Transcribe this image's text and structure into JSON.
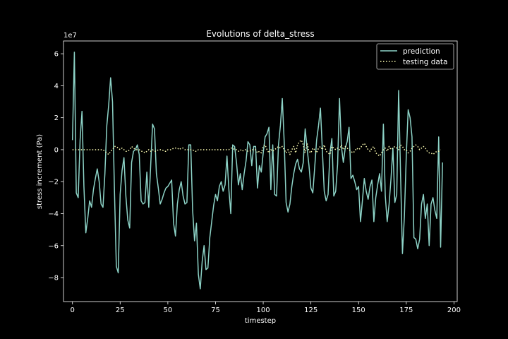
{
  "chart_data": {
    "type": "line",
    "title": "Evolutions of delta_stress",
    "xlabel": "timestep",
    "ylabel": "stress increment (Pa)",
    "y_scale_label": "1e7",
    "xlim": [
      -4.7,
      201.7
    ],
    "ylim": [
      -9.5,
      6.8
    ],
    "x_ticks": [
      0,
      25,
      50,
      75,
      100,
      125,
      150,
      175,
      200
    ],
    "x_tick_labels": [
      "0",
      "25",
      "50",
      "75",
      "100",
      "125",
      "150",
      "175",
      "200"
    ],
    "y_ticks": [
      -8,
      -6,
      -4,
      -2,
      0,
      2,
      4,
      6
    ],
    "y_tick_labels": [
      "−8",
      "−6",
      "−4",
      "−2",
      "0",
      "2",
      "4",
      "6"
    ],
    "legend_position": "upper right",
    "grid": false,
    "series": [
      {
        "name": "prediction",
        "style": "solid",
        "color": "#8dd3c7",
        "values": [
          0.6,
          6.1,
          -2.7,
          -3.0,
          0.6,
          2.4,
          -2.3,
          -5.2,
          -4.3,
          -3.2,
          -3.6,
          -2.5,
          -1.8,
          -1.2,
          -2.0,
          -3.4,
          -3.6,
          -1.5,
          1.5,
          2.8,
          4.5,
          3.0,
          -2.5,
          -7.3,
          -7.7,
          -2.8,
          -1.3,
          -0.5,
          -2.9,
          -4.4,
          -4.9,
          -0.8,
          -0.1,
          0.0,
          0.3,
          -0.3,
          -3.2,
          -3.4,
          -3.3,
          -1.4,
          -3.6,
          -1.0,
          1.6,
          1.3,
          -1.5,
          -2.4,
          -3.4,
          -3.1,
          -2.7,
          -2.4,
          -2.3,
          -2.1,
          -1.9,
          -4.6,
          -5.4,
          -3.4,
          -2.5,
          -2.0,
          -2.9,
          -3.4,
          -3.3,
          0.3,
          0.3,
          -3.8,
          -5.7,
          -4.6,
          -7.8,
          -8.7,
          -7.0,
          -6.0,
          -7.5,
          -7.4,
          -5.5,
          -4.5,
          -3.5,
          -2.8,
          -3.2,
          -2.3,
          -2.0,
          -2.6,
          -2.2,
          -0.4,
          -2.5,
          -4.0,
          0.3,
          0.2,
          -0.8,
          -2.2,
          -1.5,
          -2.5,
          -1.5,
          -0.7,
          0.5,
          0.3,
          -1.0,
          0.2,
          0.2,
          -2.4,
          -1.0,
          -1.4,
          -0.2,
          0.8,
          1.0,
          1.4,
          -2.5,
          0.3,
          -2.8,
          -2.9,
          0.3,
          1.5,
          3.2,
          0.5,
          -3.3,
          -3.9,
          -3.4,
          -2.3,
          -1.5,
          -0.9,
          -0.6,
          -1.2,
          -1.4,
          -0.8,
          1.3,
          0.1,
          -1.0,
          -2.4,
          -2.7,
          -1.1,
          0.6,
          1.5,
          2.6,
          0.0,
          -2.6,
          -3.2,
          -2.8,
          -0.2,
          0.7,
          -2.9,
          -2.6,
          -0.9,
          3.2,
          0.2,
          -0.8,
          0.1,
          0.5,
          1.4,
          -1.8,
          -1.6,
          -2.0,
          -2.5,
          -2.3,
          -4.5,
          -3.2,
          -1.8,
          -2.6,
          -3.1,
          -2.3,
          -1.9,
          -4.5,
          -3.0,
          -2.2,
          -1.5,
          -2.6,
          1.6,
          -2.9,
          -4.5,
          -3.4,
          -1.8,
          0.1,
          -3.3,
          -2.8,
          3.7,
          -1.5,
          -6.5,
          -4.2,
          -0.4,
          2.5,
          2.0,
          0.8,
          -5.5,
          -5.6,
          -6.2,
          -5.6,
          -3.4,
          -2.8,
          -4.3,
          -3.4,
          -6.0,
          -3.4,
          -3.0,
          -3.8,
          -4.3,
          0.8,
          -6.1,
          -0.8
        ]
      },
      {
        "name": "testing data",
        "style": "dotted",
        "color": "#ffffb3",
        "values": [
          0.0,
          0.0,
          0.0,
          0.0,
          0.0,
          0.0,
          0.0,
          0.0,
          0.0,
          0.0,
          0.0,
          0.0,
          0.0,
          0.0,
          0.0,
          0.0,
          0.0,
          -0.1,
          -0.2,
          -0.3,
          -0.1,
          0.0,
          0.2,
          0.2,
          0.1,
          0.0,
          0.1,
          0.0,
          -0.1,
          -0.1,
          0.0,
          0.2,
          0.1,
          0.0,
          0.0,
          0.0,
          -0.1,
          -0.1,
          -0.2,
          -0.1,
          0.0,
          -0.1,
          0.0,
          -0.1,
          -0.1,
          0.0,
          0.0,
          0.0,
          -0.1,
          -0.1,
          0.0,
          0.0,
          0.0,
          0.1,
          0.1,
          0.1,
          0.0,
          0.1,
          0.1,
          0.0,
          0.0,
          0.0,
          0.0,
          0.0,
          -0.1,
          -0.1,
          0.0,
          0.0,
          0.0,
          0.0,
          0.0,
          0.0,
          0.0,
          0.0,
          0.0,
          0.0,
          0.0,
          0.0,
          0.0,
          0.0,
          0.0,
          0.0,
          0.0,
          0.1,
          0.1,
          0.0,
          0.0,
          -0.1,
          0.0,
          -0.1,
          0.0,
          0.0,
          -0.1,
          -0.1,
          0.0,
          0.0,
          0.0,
          -0.2,
          -0.1,
          -0.2,
          0.2,
          0.3,
          0.0,
          -0.2,
          0.0,
          -0.1,
          0.0,
          0.1,
          0.2,
          0.1,
          0.2,
          0.0,
          -0.2,
          0.0,
          -0.3,
          0.0,
          0.2,
          -0.2,
          0.3,
          0.5,
          0.6,
          0.3,
          -0.2,
          0.4,
          -0.1,
          -0.2,
          0.1,
          0.0,
          -0.2,
          0.1,
          0.2,
          0.0,
          0.3,
          -0.1,
          -0.2,
          -0.3,
          0.2,
          0.1,
          0.0,
          0.1,
          0.0,
          0.3,
          0.0,
          0.2,
          0.1,
          0.0,
          -0.1,
          -0.2,
          -0.1,
          0.1,
          0.0,
          0.1,
          0.3,
          0.4,
          0.2,
          0.0,
          -0.1,
          0.1,
          0.2,
          -0.2,
          -0.3,
          -0.4,
          -0.2,
          0.0,
          0.1,
          -0.1,
          0.2,
          0.0,
          0.1,
          0.2,
          0.1,
          0.0,
          0.3,
          0.2,
          0.0,
          0.0,
          -0.2,
          -0.1,
          0.1,
          0.2,
          0.3,
          0.2,
          0.0,
          0.1,
          0.2,
          0.1,
          -0.1,
          -0.2,
          -0.2,
          -0.3,
          -0.2,
          -0.1,
          -0.1,
          0.0
        ]
      }
    ]
  }
}
